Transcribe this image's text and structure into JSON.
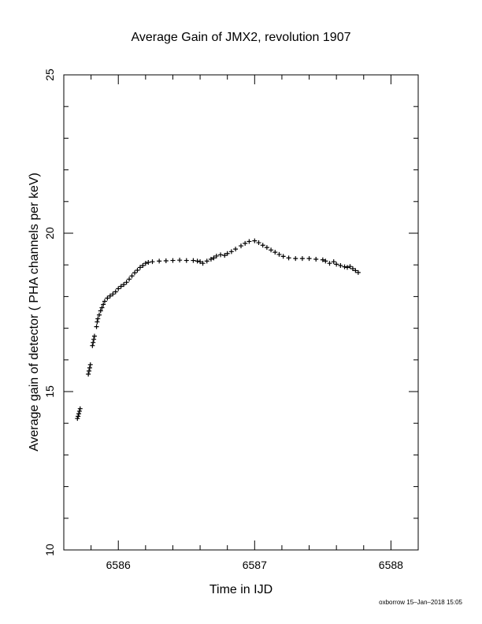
{
  "chart_data": {
    "type": "scatter",
    "title": "Average Gain of JMX2, revolution 1907",
    "xlabel": "Time in IJD",
    "ylabel": "Average gain of detector ( PHA channels per keV)",
    "xlim": [
      6585.6,
      6588.2
    ],
    "ylim": [
      10,
      25
    ],
    "xticks": [
      6586,
      6587,
      6588
    ],
    "yticks": [
      10,
      15,
      20,
      25
    ],
    "x_minor_step": 0.2,
    "y_minor_step": 1,
    "marker": "plus",
    "grid": false,
    "legend": "none",
    "credit": "oxborrow 15–Jan–2018 15:05",
    "points": [
      [
        6585.7,
        14.15
      ],
      [
        6585.705,
        14.22
      ],
      [
        6585.71,
        14.3
      ],
      [
        6585.715,
        14.38
      ],
      [
        6585.72,
        14.46
      ],
      [
        6585.78,
        15.55
      ],
      [
        6585.785,
        15.65
      ],
      [
        6585.79,
        15.75
      ],
      [
        6585.795,
        15.85
      ],
      [
        6585.81,
        16.45
      ],
      [
        6585.815,
        16.55
      ],
      [
        6585.82,
        16.65
      ],
      [
        6585.825,
        16.75
      ],
      [
        6585.84,
        17.05
      ],
      [
        6585.845,
        17.2
      ],
      [
        6585.85,
        17.3
      ],
      [
        6585.86,
        17.42
      ],
      [
        6585.87,
        17.55
      ],
      [
        6585.88,
        17.65
      ],
      [
        6585.89,
        17.75
      ],
      [
        6585.9,
        17.85
      ],
      [
        6585.92,
        17.95
      ],
      [
        6585.94,
        18.02
      ],
      [
        6585.96,
        18.08
      ],
      [
        6585.98,
        18.15
      ],
      [
        6586.0,
        18.25
      ],
      [
        6586.02,
        18.32
      ],
      [
        6586.04,
        18.38
      ],
      [
        6586.06,
        18.45
      ],
      [
        6586.08,
        18.55
      ],
      [
        6586.1,
        18.65
      ],
      [
        6586.12,
        18.75
      ],
      [
        6586.14,
        18.83
      ],
      [
        6586.16,
        18.92
      ],
      [
        6586.18,
        18.98
      ],
      [
        6586.2,
        19.05
      ],
      [
        6586.22,
        19.08
      ],
      [
        6586.25,
        19.1
      ],
      [
        6586.3,
        19.12
      ],
      [
        6586.35,
        19.13
      ],
      [
        6586.4,
        19.14
      ],
      [
        6586.45,
        19.15
      ],
      [
        6586.5,
        19.14
      ],
      [
        6586.55,
        19.14
      ],
      [
        6586.58,
        19.12
      ],
      [
        6586.6,
        19.1
      ],
      [
        6586.62,
        19.05
      ],
      [
        6586.65,
        19.12
      ],
      [
        6586.68,
        19.18
      ],
      [
        6586.7,
        19.22
      ],
      [
        6586.72,
        19.28
      ],
      [
        6586.75,
        19.32
      ],
      [
        6586.78,
        19.3
      ],
      [
        6586.8,
        19.36
      ],
      [
        6586.83,
        19.42
      ],
      [
        6586.86,
        19.5
      ],
      [
        6586.9,
        19.6
      ],
      [
        6586.93,
        19.68
      ],
      [
        6586.96,
        19.74
      ],
      [
        6587.0,
        19.76
      ],
      [
        6587.03,
        19.7
      ],
      [
        6587.06,
        19.62
      ],
      [
        6587.09,
        19.55
      ],
      [
        6587.12,
        19.47
      ],
      [
        6587.15,
        19.4
      ],
      [
        6587.18,
        19.33
      ],
      [
        6587.21,
        19.27
      ],
      [
        6587.25,
        19.22
      ],
      [
        6587.3,
        19.2
      ],
      [
        6587.35,
        19.2
      ],
      [
        6587.4,
        19.2
      ],
      [
        6587.45,
        19.18
      ],
      [
        6587.5,
        19.16
      ],
      [
        6587.52,
        19.12
      ],
      [
        6587.55,
        19.05
      ],
      [
        6587.58,
        19.1
      ],
      [
        6587.6,
        19.02
      ],
      [
        6587.63,
        18.98
      ],
      [
        6587.66,
        18.94
      ],
      [
        6587.68,
        18.92
      ],
      [
        6587.7,
        18.95
      ],
      [
        6587.72,
        18.88
      ],
      [
        6587.74,
        18.82
      ],
      [
        6587.76,
        18.76
      ]
    ]
  }
}
